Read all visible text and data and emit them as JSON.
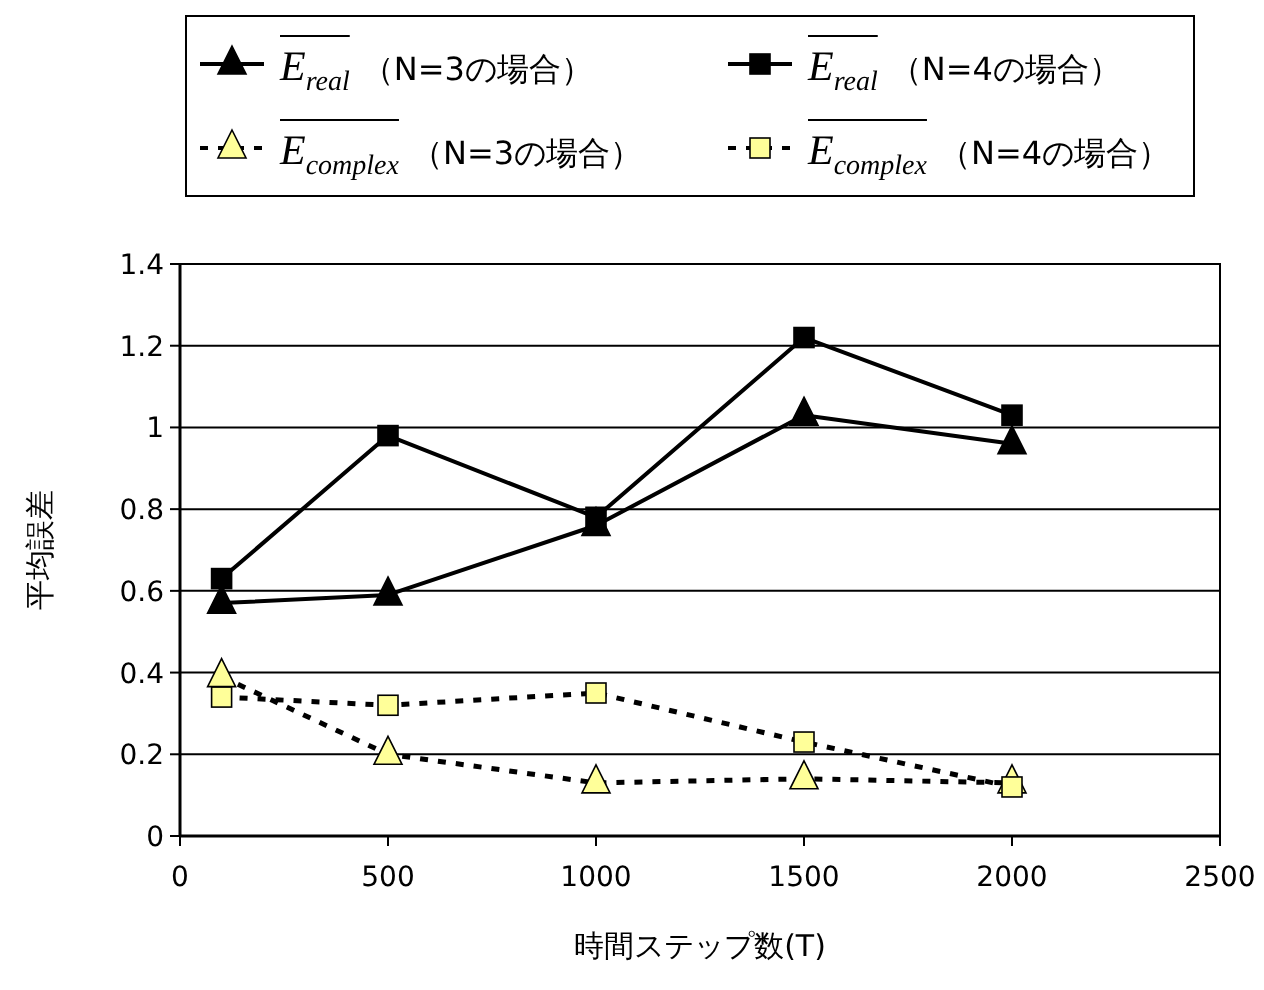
{
  "chart_data": {
    "type": "line",
    "xlabel": "時間ステップ数(T)",
    "ylabel": "平均誤差",
    "x": [
      100,
      500,
      1000,
      1500,
      2000
    ],
    "series": [
      {
        "name": "E$_{real}$（N=3の場合）",
        "color": "#000000",
        "marker": "triangle",
        "line_style": "solid",
        "values": [
          0.57,
          0.59,
          0.76,
          1.03,
          0.96
        ]
      },
      {
        "name": "E$_{real}$（N=4の場合）",
        "color": "#000000",
        "marker": "square",
        "line_style": "solid",
        "values": [
          0.63,
          0.98,
          0.78,
          1.22,
          1.03
        ]
      },
      {
        "name": "E$_{complex}$（N=3の場合）",
        "color": "#ffff99",
        "marker": "triangle",
        "line_style": "dashed",
        "values": [
          0.39,
          0.2,
          0.13,
          0.14,
          0.13
        ]
      },
      {
        "name": "E$_{complex}$（N=4の場合）",
        "color": "#ffff99",
        "marker": "square",
        "line_style": "dashed",
        "values": [
          0.34,
          0.32,
          0.35,
          0.23,
          0.12
        ]
      }
    ],
    "xlim": [
      0,
      2500
    ],
    "xticks": [
      0,
      500,
      1000,
      1500,
      2000,
      2500
    ],
    "ylim": [
      0,
      1.4
    ],
    "yticks": [
      0,
      {
        "value": 0.2,
        "label": "0.2"
      },
      {
        "value": 0.4,
        "label": "0.4"
      },
      {
        "value": 0.6,
        "label": "0.6"
      },
      {
        "value": 0.8,
        "label": "0.8"
      },
      1,
      {
        "value": 1.2,
        "label": "1.2"
      },
      {
        "value": 1.4,
        "label": "1.4"
      }
    ],
    "grid": "y",
    "legend": "top"
  }
}
